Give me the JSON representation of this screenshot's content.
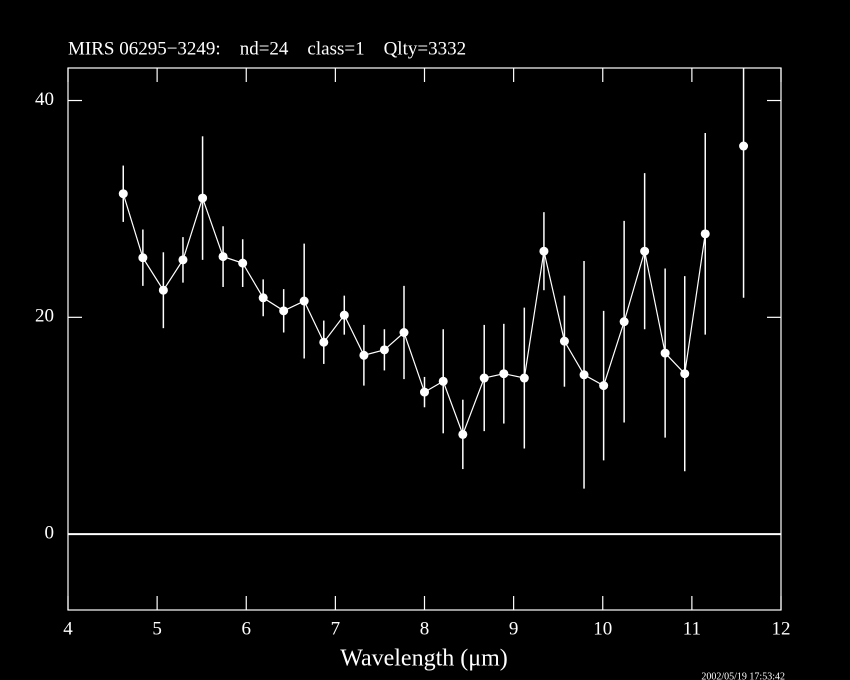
{
  "chart_data": {
    "type": "errorbar",
    "title": "MIRS 06295−3249:    nd=24    class=1    Qlty=3332",
    "x_label": "Wavelength (μm)",
    "timestamp": "2002/05/19 17:53:42",
    "xlim": [
      4,
      12
    ],
    "ylim": [
      -7,
      43
    ],
    "xticks": [
      4,
      5,
      6,
      7,
      8,
      9,
      10,
      11,
      12
    ],
    "yticks": [
      0,
      20,
      40
    ],
    "hline": 0,
    "color": "#ffffff",
    "series": [
      {
        "connect": true,
        "x": [
          4.62,
          4.84,
          5.07,
          5.29,
          5.51,
          5.74,
          5.96,
          6.19,
          6.42,
          6.65,
          6.87,
          7.1,
          7.32,
          7.55,
          7.77,
          8.0,
          8.21,
          8.43,
          8.67,
          8.89,
          9.12,
          9.34,
          9.57,
          9.79,
          10.01,
          10.24,
          10.47,
          10.7,
          10.92,
          11.15
        ],
        "values": [
          31.4,
          25.5,
          22.5,
          25.3,
          31.0,
          25.6,
          25.0,
          21.8,
          20.6,
          21.5,
          17.7,
          20.2,
          16.5,
          17.0,
          18.6,
          13.1,
          14.1,
          9.2,
          14.4,
          14.8,
          14.4,
          26.1,
          17.8,
          14.7,
          13.7,
          19.6,
          26.1,
          16.7,
          14.8,
          27.7
        ],
        "errors": [
          2.6,
          2.6,
          3.5,
          2.1,
          5.7,
          2.8,
          2.2,
          1.7,
          2.0,
          5.3,
          2.0,
          1.8,
          2.8,
          1.9,
          4.3,
          1.4,
          4.8,
          3.2,
          4.9,
          4.6,
          6.5,
          3.6,
          4.2,
          10.5,
          6.9,
          9.3,
          7.2,
          7.8,
          9.0,
          9.3
        ]
      },
      {
        "connect": false,
        "x": [
          11.58
        ],
        "values": [
          35.8
        ],
        "errors": [
          14.0
        ]
      }
    ]
  }
}
